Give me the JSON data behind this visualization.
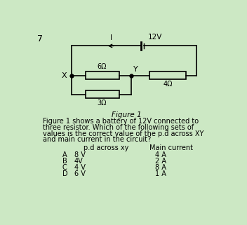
{
  "background_color": "#cce8c4",
  "question_number": "7",
  "battery_label": "12V",
  "current_label": "I",
  "node_x_label": "X",
  "node_y_label": "Y",
  "resistor_labels": [
    "6Ω",
    "3Ω",
    "4Ω"
  ],
  "figure_caption": "Figure 1",
  "description_lines": [
    "Figure 1 shows a battery of 12V connected to",
    "three resistor. Which of the following sets of",
    "values is the correct value of the p.d across XY",
    "and main current in the circuit?"
  ],
  "table_header": [
    "p.d across xy",
    "Main current"
  ],
  "options": [
    [
      "A",
      "8 V",
      "4 A"
    ],
    [
      "B",
      "4V",
      "2 A"
    ],
    [
      "C",
      "4 V",
      "8 A"
    ],
    [
      "D",
      "6 V",
      "1 A"
    ]
  ],
  "font_size_body": 7.0,
  "font_size_caption": 7.5,
  "font_size_qnum": 9.0,
  "lw": 1.2
}
